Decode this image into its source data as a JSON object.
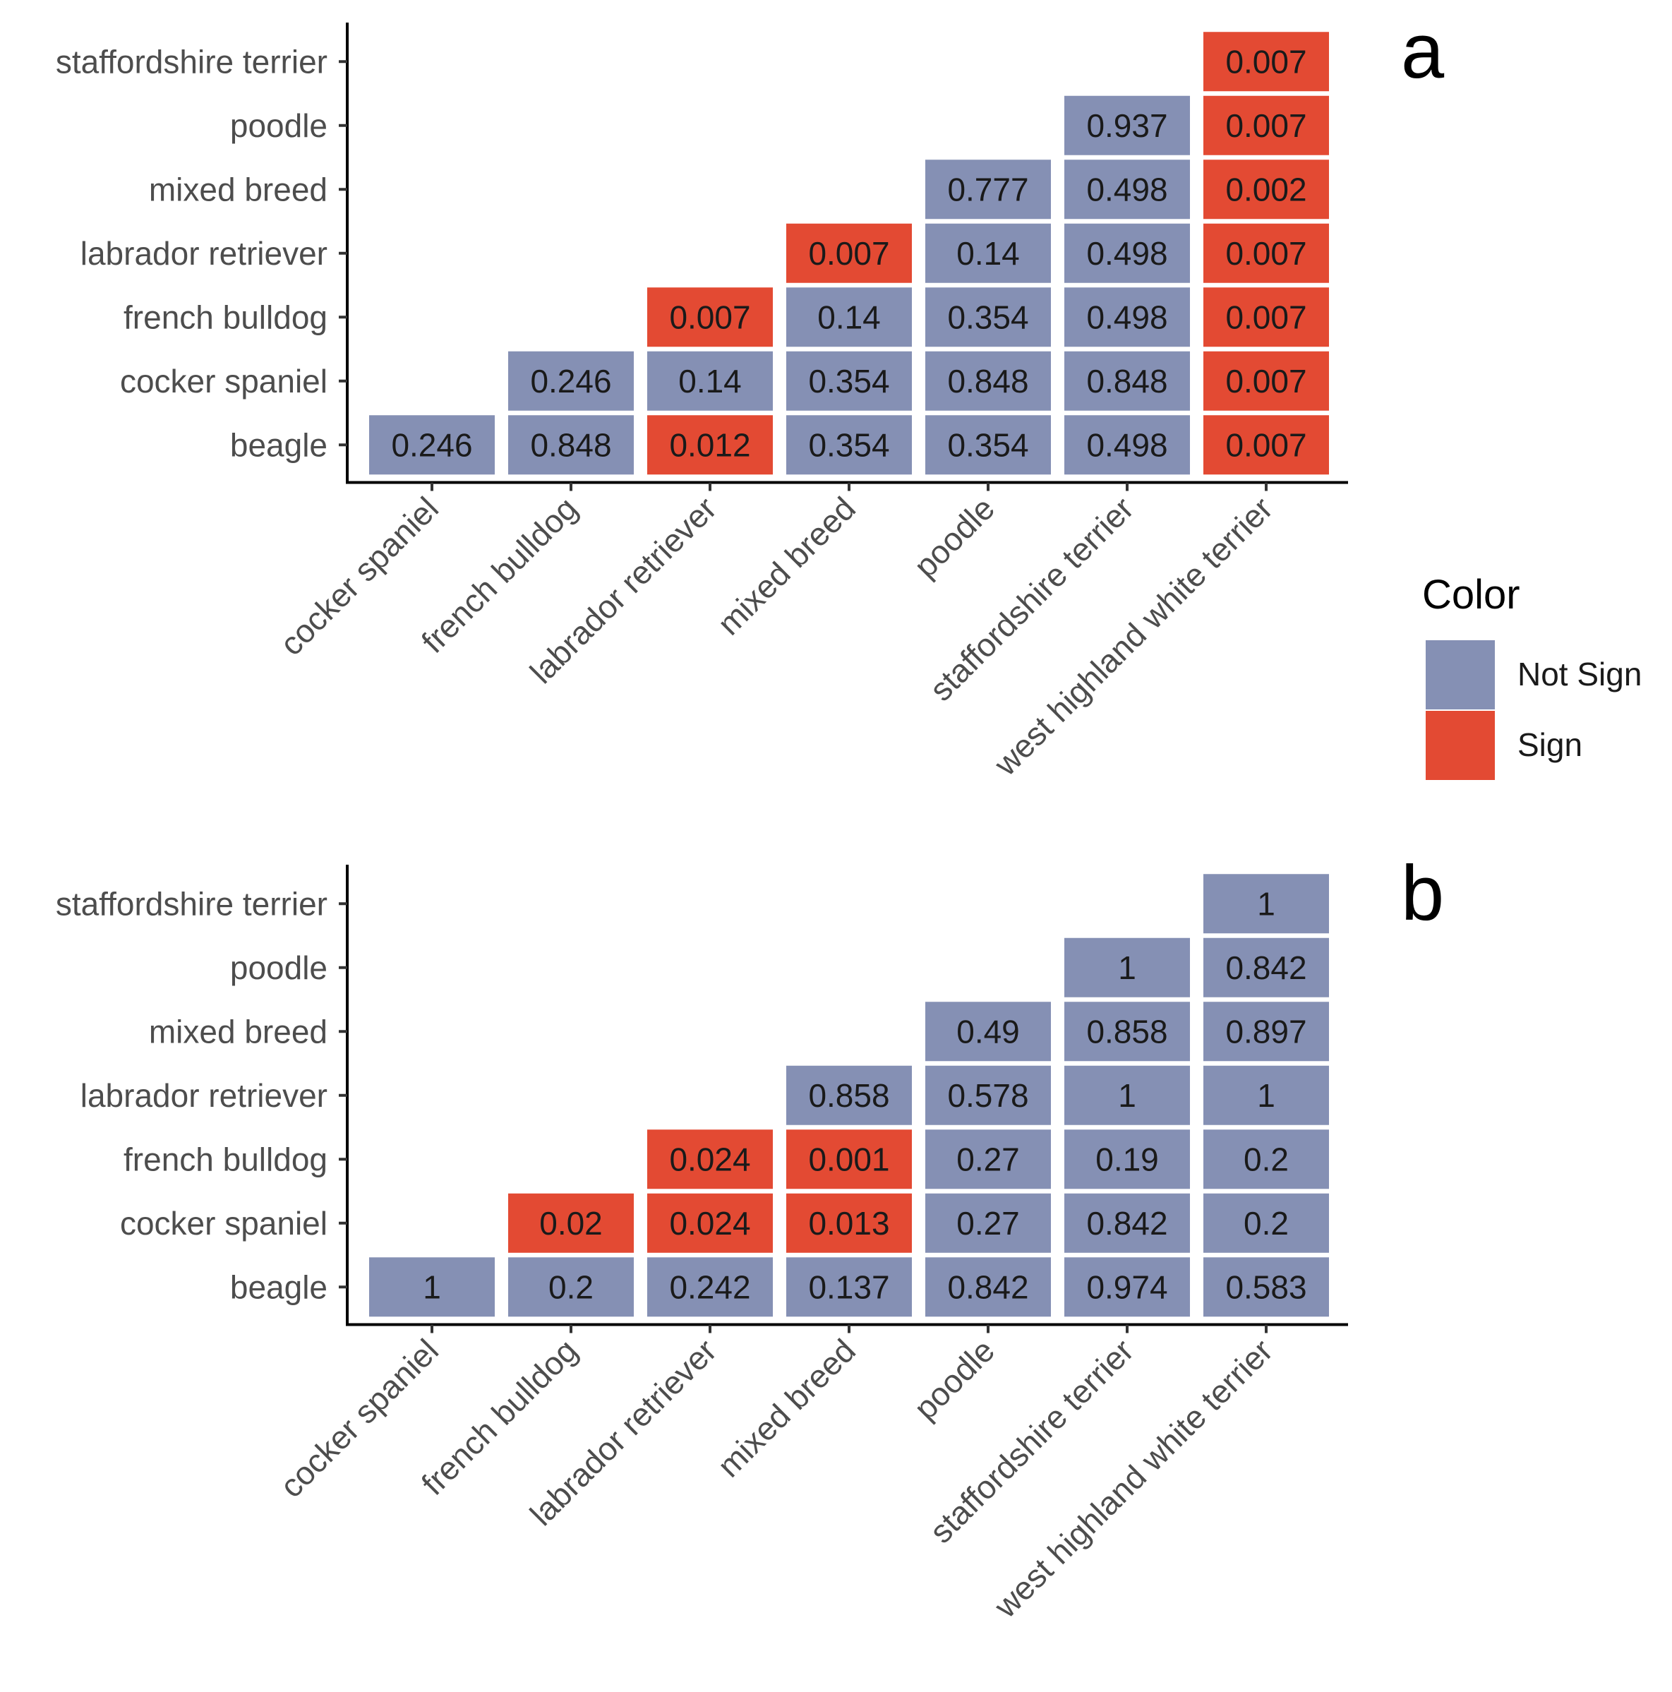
{
  "chart_data": [
    {
      "type": "heatmap",
      "panel_label": "a",
      "x_categories": [
        "cocker spaniel",
        "french bulldog",
        "labrador retriever",
        "mixed breed",
        "poodle",
        "staffordshire terrier",
        "west highland white terrier"
      ],
      "y_categories": [
        "beagle",
        "cocker spaniel",
        "french bulldog",
        "labrador retriever",
        "mixed breed",
        "poodle",
        "staffordshire terrier"
      ],
      "cells": [
        {
          "x": "cocker spaniel",
          "y": "beagle",
          "label": "0.246",
          "color": "Not Sign"
        },
        {
          "x": "french bulldog",
          "y": "beagle",
          "label": "0.848",
          "color": "Not Sign"
        },
        {
          "x": "labrador retriever",
          "y": "beagle",
          "label": "0.012",
          "color": "Sign"
        },
        {
          "x": "mixed breed",
          "y": "beagle",
          "label": "0.354",
          "color": "Not Sign"
        },
        {
          "x": "poodle",
          "y": "beagle",
          "label": "0.354",
          "color": "Not Sign"
        },
        {
          "x": "staffordshire terrier",
          "y": "beagle",
          "label": "0.498",
          "color": "Not Sign"
        },
        {
          "x": "west highland white terrier",
          "y": "beagle",
          "label": "0.007",
          "color": "Sign"
        },
        {
          "x": "french bulldog",
          "y": "cocker spaniel",
          "label": "0.246",
          "color": "Not Sign"
        },
        {
          "x": "labrador retriever",
          "y": "cocker spaniel",
          "label": "0.14",
          "color": "Not Sign"
        },
        {
          "x": "mixed breed",
          "y": "cocker spaniel",
          "label": "0.354",
          "color": "Not Sign"
        },
        {
          "x": "poodle",
          "y": "cocker spaniel",
          "label": "0.848",
          "color": "Not Sign"
        },
        {
          "x": "staffordshire terrier",
          "y": "cocker spaniel",
          "label": "0.848",
          "color": "Not Sign"
        },
        {
          "x": "west highland white terrier",
          "y": "cocker spaniel",
          "label": "0.007",
          "color": "Sign"
        },
        {
          "x": "labrador retriever",
          "y": "french bulldog",
          "label": "0.007",
          "color": "Sign"
        },
        {
          "x": "mixed breed",
          "y": "french bulldog",
          "label": "0.14",
          "color": "Not Sign"
        },
        {
          "x": "poodle",
          "y": "french bulldog",
          "label": "0.354",
          "color": "Not Sign"
        },
        {
          "x": "staffordshire terrier",
          "y": "french bulldog",
          "label": "0.498",
          "color": "Not Sign"
        },
        {
          "x": "west highland white terrier",
          "y": "french bulldog",
          "label": "0.007",
          "color": "Sign"
        },
        {
          "x": "mixed breed",
          "y": "labrador retriever",
          "label": "0.007",
          "color": "Sign"
        },
        {
          "x": "poodle",
          "y": "labrador retriever",
          "label": "0.14",
          "color": "Not Sign"
        },
        {
          "x": "staffordshire terrier",
          "y": "labrador retriever",
          "label": "0.498",
          "color": "Not Sign"
        },
        {
          "x": "west highland white terrier",
          "y": "labrador retriever",
          "label": "0.007",
          "color": "Sign"
        },
        {
          "x": "poodle",
          "y": "mixed breed",
          "label": "0.777",
          "color": "Not Sign"
        },
        {
          "x": "staffordshire terrier",
          "y": "mixed breed",
          "label": "0.498",
          "color": "Not Sign"
        },
        {
          "x": "west highland white terrier",
          "y": "mixed breed",
          "label": "0.002",
          "color": "Sign"
        },
        {
          "x": "staffordshire terrier",
          "y": "poodle",
          "label": "0.937",
          "color": "Not Sign"
        },
        {
          "x": "west highland white terrier",
          "y": "poodle",
          "label": "0.007",
          "color": "Sign"
        },
        {
          "x": "west highland white terrier",
          "y": "staffordshire terrier",
          "label": "0.007",
          "color": "Sign"
        }
      ]
    },
    {
      "type": "heatmap",
      "panel_label": "b",
      "x_categories": [
        "cocker spaniel",
        "french bulldog",
        "labrador retriever",
        "mixed breed",
        "poodle",
        "staffordshire terrier",
        "west highland white terrier"
      ],
      "y_categories": [
        "beagle",
        "cocker spaniel",
        "french bulldog",
        "labrador retriever",
        "mixed breed",
        "poodle",
        "staffordshire terrier"
      ],
      "cells": [
        {
          "x": "cocker spaniel",
          "y": "beagle",
          "label": "1",
          "color": "Not Sign"
        },
        {
          "x": "french bulldog",
          "y": "beagle",
          "label": "0.2",
          "color": "Not Sign"
        },
        {
          "x": "labrador retriever",
          "y": "beagle",
          "label": "0.242",
          "color": "Not Sign"
        },
        {
          "x": "mixed breed",
          "y": "beagle",
          "label": "0.137",
          "color": "Not Sign"
        },
        {
          "x": "poodle",
          "y": "beagle",
          "label": "0.842",
          "color": "Not Sign"
        },
        {
          "x": "staffordshire terrier",
          "y": "beagle",
          "label": "0.974",
          "color": "Not Sign"
        },
        {
          "x": "west highland white terrier",
          "y": "beagle",
          "label": "0.583",
          "color": "Not Sign"
        },
        {
          "x": "french bulldog",
          "y": "cocker spaniel",
          "label": "0.02",
          "color": "Sign"
        },
        {
          "x": "labrador retriever",
          "y": "cocker spaniel",
          "label": "0.024",
          "color": "Sign"
        },
        {
          "x": "mixed breed",
          "y": "cocker spaniel",
          "label": "0.013",
          "color": "Sign"
        },
        {
          "x": "poodle",
          "y": "cocker spaniel",
          "label": "0.27",
          "color": "Not Sign"
        },
        {
          "x": "staffordshire terrier",
          "y": "cocker spaniel",
          "label": "0.842",
          "color": "Not Sign"
        },
        {
          "x": "west highland white terrier",
          "y": "cocker spaniel",
          "label": "0.2",
          "color": "Not Sign"
        },
        {
          "x": "labrador retriever",
          "y": "french bulldog",
          "label": "0.024",
          "color": "Sign"
        },
        {
          "x": "mixed breed",
          "y": "french bulldog",
          "label": "0.001",
          "color": "Sign"
        },
        {
          "x": "poodle",
          "y": "french bulldog",
          "label": "0.27",
          "color": "Not Sign"
        },
        {
          "x": "staffordshire terrier",
          "y": "french bulldog",
          "label": "0.19",
          "color": "Not Sign"
        },
        {
          "x": "west highland white terrier",
          "y": "french bulldog",
          "label": "0.2",
          "color": "Not Sign"
        },
        {
          "x": "mixed breed",
          "y": "labrador retriever",
          "label": "0.858",
          "color": "Not Sign"
        },
        {
          "x": "poodle",
          "y": "labrador retriever",
          "label": "0.578",
          "color": "Not Sign"
        },
        {
          "x": "staffordshire terrier",
          "y": "labrador retriever",
          "label": "1",
          "color": "Not Sign"
        },
        {
          "x": "west highland white terrier",
          "y": "labrador retriever",
          "label": "1",
          "color": "Not Sign"
        },
        {
          "x": "poodle",
          "y": "mixed breed",
          "label": "0.49",
          "color": "Not Sign"
        },
        {
          "x": "staffordshire terrier",
          "y": "mixed breed",
          "label": "0.858",
          "color": "Not Sign"
        },
        {
          "x": "west highland white terrier",
          "y": "mixed breed",
          "label": "0.897",
          "color": "Not Sign"
        },
        {
          "x": "staffordshire terrier",
          "y": "poodle",
          "label": "1",
          "color": "Not Sign"
        },
        {
          "x": "west highland white terrier",
          "y": "poodle",
          "label": "0.842",
          "color": "Not Sign"
        },
        {
          "x": "west highland white terrier",
          "y": "staffordshire terrier",
          "label": "1",
          "color": "Not Sign"
        }
      ]
    }
  ],
  "legend": {
    "title": "Color",
    "items": [
      {
        "label": "Not Sign",
        "color": "#8590b4"
      },
      {
        "label": "Sign",
        "color": "#e34a33"
      }
    ]
  },
  "colors": {
    "Not Sign": "#8590b4",
    "Sign": "#e34a33",
    "axis": "#000000"
  }
}
